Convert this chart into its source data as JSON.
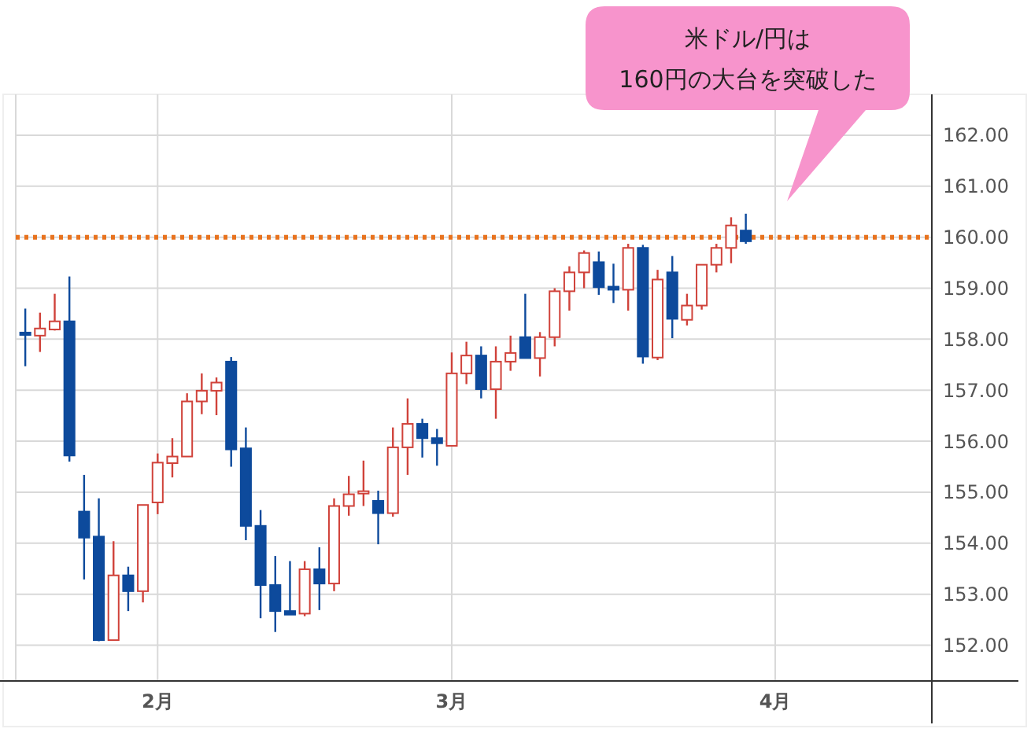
{
  "chart_data": {
    "type": "candlestick",
    "categories": [
      null,
      null,
      null,
      null,
      null,
      null,
      null,
      null,
      null,
      "2月",
      null,
      null,
      null,
      null,
      null,
      null,
      null,
      null,
      null,
      null,
      null,
      null,
      null,
      null,
      null,
      null,
      null,
      null,
      null,
      "3月",
      null,
      null,
      null,
      null,
      null,
      null,
      null,
      null,
      null,
      null,
      null,
      null,
      null,
      null,
      null,
      null,
      null,
      null,
      null,
      null,
      null,
      "4月",
      null,
      null,
      null,
      null,
      null,
      null,
      null,
      null,
      null,
      null
    ],
    "ohlc": [
      [
        158.13,
        158.6,
        157.47,
        158.11
      ],
      [
        158.07,
        158.52,
        157.75,
        158.21
      ],
      [
        158.19,
        158.89,
        158.17,
        158.35
      ],
      [
        158.35,
        159.23,
        155.6,
        155.72
      ],
      [
        154.62,
        155.34,
        153.29,
        154.11
      ],
      [
        154.13,
        154.88,
        152.08,
        152.1
      ],
      [
        152.1,
        154.04,
        152.1,
        153.37
      ],
      [
        153.37,
        153.54,
        152.67,
        153.06
      ],
      [
        153.06,
        154.75,
        152.84,
        154.75
      ],
      [
        154.8,
        155.76,
        154.57,
        155.58
      ],
      [
        155.57,
        156.06,
        155.29,
        155.7
      ],
      [
        155.7,
        156.94,
        155.7,
        156.78
      ],
      [
        156.78,
        157.33,
        156.53,
        156.99
      ],
      [
        156.99,
        157.25,
        156.51,
        157.15
      ],
      [
        157.56,
        157.65,
        155.5,
        155.84
      ],
      [
        155.86,
        156.27,
        154.06,
        154.34
      ],
      [
        154.34,
        154.65,
        152.53,
        153.18
      ],
      [
        153.18,
        153.75,
        152.26,
        152.67
      ],
      [
        152.67,
        153.65,
        152.6,
        152.6
      ],
      [
        152.62,
        153.65,
        152.57,
        153.49
      ],
      [
        153.49,
        153.92,
        152.69,
        153.21
      ],
      [
        153.21,
        154.88,
        153.06,
        154.73
      ],
      [
        154.73,
        155.32,
        154.54,
        154.96
      ],
      [
        155.0,
        155.62,
        154.73,
        155.02
      ],
      [
        154.83,
        155.03,
        153.98,
        154.59
      ],
      [
        154.59,
        156.27,
        154.52,
        155.88
      ],
      [
        155.88,
        156.84,
        155.34,
        156.34
      ],
      [
        156.34,
        156.44,
        155.68,
        156.06
      ],
      [
        156.06,
        156.24,
        155.52,
        155.96
      ],
      [
        155.91,
        157.74,
        155.91,
        157.33
      ],
      [
        157.33,
        157.95,
        157.12,
        157.68
      ],
      [
        157.68,
        157.86,
        156.84,
        157.02
      ],
      [
        157.02,
        157.86,
        156.44,
        157.56
      ],
      [
        157.56,
        158.07,
        157.38,
        157.73
      ],
      [
        158.04,
        158.89,
        157.63,
        157.63
      ],
      [
        157.63,
        158.14,
        157.27,
        158.04
      ],
      [
        158.04,
        159.0,
        157.86,
        158.94
      ],
      [
        158.94,
        159.43,
        158.56,
        159.31
      ],
      [
        159.31,
        159.74,
        159.0,
        159.69
      ],
      [
        159.51,
        159.72,
        158.87,
        159.02
      ],
      [
        159.03,
        159.48,
        158.71,
        158.97
      ],
      [
        158.97,
        159.87,
        158.56,
        159.79
      ],
      [
        159.79,
        159.85,
        157.52,
        157.66
      ],
      [
        157.64,
        159.36,
        157.59,
        159.17
      ],
      [
        159.31,
        159.63,
        158.02,
        158.4
      ],
      [
        158.38,
        158.89,
        158.27,
        158.66
      ],
      [
        158.66,
        159.46,
        158.58,
        159.46
      ],
      [
        159.46,
        159.87,
        159.31,
        159.79
      ],
      [
        159.79,
        160.39,
        159.49,
        160.23
      ],
      [
        160.13,
        160.46,
        159.87,
        159.92
      ],
      null,
      null,
      null,
      null,
      null,
      null,
      null,
      null,
      null,
      null,
      null,
      null
    ],
    "colors": [
      "#0d4a9c",
      "#d0423a",
      "#d0423a",
      "#0d4a9c",
      "#0d4a9c",
      "#0d4a9c",
      "#d0423a",
      "#0d4a9c",
      "#d0423a",
      "#d0423a",
      "#d0423a",
      "#d0423a",
      "#d0423a",
      "#d0423a",
      "#0d4a9c",
      "#0d4a9c",
      "#0d4a9c",
      "#0d4a9c",
      "#0d4a9c",
      "#d0423a",
      "#0d4a9c",
      "#d0423a",
      "#d0423a",
      "#d0423a",
      "#0d4a9c",
      "#d0423a",
      "#d0423a",
      "#0d4a9c",
      "#0d4a9c",
      "#d0423a",
      "#d0423a",
      "#0d4a9c",
      "#d0423a",
      "#d0423a",
      "#0d4a9c",
      "#d0423a",
      "#d0423a",
      "#d0423a",
      "#d0423a",
      "#0d4a9c",
      "#0d4a9c",
      "#d0423a",
      "#0d4a9c",
      "#d0423a",
      "#0d4a9c",
      "#d0423a",
      "#d0423a",
      "#d0423a",
      "#d0423a",
      "#0d4a9c",
      null,
      null,
      null,
      null,
      null,
      null,
      null,
      null,
      null,
      null,
      null,
      null
    ],
    "ylim": [
      151.3,
      162.8
    ],
    "yticks": [
      {
        "value": 152,
        "label": "152.00"
      },
      {
        "value": 153,
        "label": "153.00"
      },
      {
        "value": 154,
        "label": "154.00"
      },
      {
        "value": 155,
        "label": "155.00"
      },
      {
        "value": 156,
        "label": "156.00"
      },
      {
        "value": 157,
        "label": "157.00"
      },
      {
        "value": 158,
        "label": "158.00"
      },
      {
        "value": 159,
        "label": "159.00"
      },
      {
        "value": 160,
        "label": "160.00"
      },
      {
        "value": 161,
        "label": "161.00"
      },
      {
        "value": 162,
        "label": "162.00"
      }
    ],
    "grid": true,
    "ref_lines": [
      {
        "axis": "y",
        "value": 160,
        "color": "#e8731f",
        "line_style": "dotted"
      }
    ],
    "annotations": [
      "米ドル/円は\n160円の大台を突破した"
    ]
  }
}
